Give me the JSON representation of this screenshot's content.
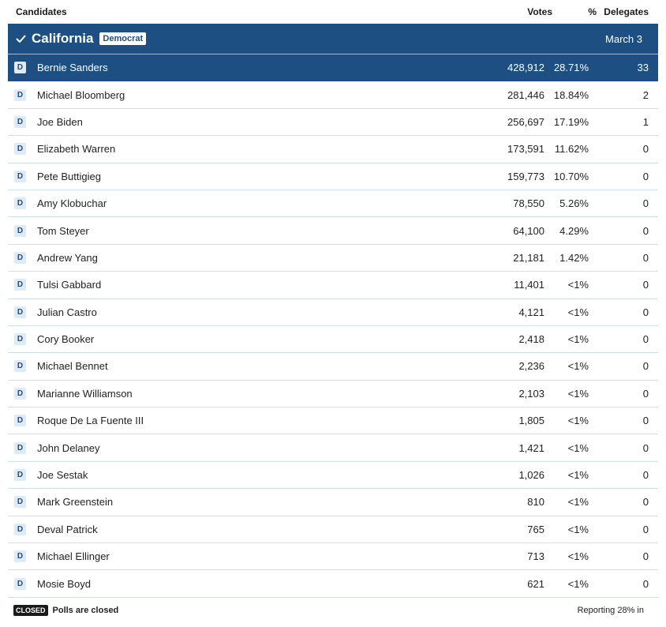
{
  "header": {
    "candidates_label": "Candidates",
    "votes_label": "Votes",
    "pct_label": "%",
    "delegates_label": "Delegates"
  },
  "state": {
    "name": "California",
    "party": "Democrat",
    "date": "March 3",
    "colors": {
      "bar": "#1d4f82",
      "badge_bg": "#dfeaf7"
    }
  },
  "candidates": [
    {
      "party": "D",
      "name": "Bernie Sanders",
      "votes": "428,912",
      "pct": "28.71%",
      "delegates": "33",
      "winner": true
    },
    {
      "party": "D",
      "name": "Michael Bloomberg",
      "votes": "281,446",
      "pct": "18.84%",
      "delegates": "2"
    },
    {
      "party": "D",
      "name": "Joe Biden",
      "votes": "256,697",
      "pct": "17.19%",
      "delegates": "1"
    },
    {
      "party": "D",
      "name": "Elizabeth Warren",
      "votes": "173,591",
      "pct": "11.62%",
      "delegates": "0"
    },
    {
      "party": "D",
      "name": "Pete Buttigieg",
      "votes": "159,773",
      "pct": "10.70%",
      "delegates": "0"
    },
    {
      "party": "D",
      "name": "Amy Klobuchar",
      "votes": "78,550",
      "pct": "5.26%",
      "delegates": "0"
    },
    {
      "party": "D",
      "name": "Tom Steyer",
      "votes": "64,100",
      "pct": "4.29%",
      "delegates": "0"
    },
    {
      "party": "D",
      "name": "Andrew Yang",
      "votes": "21,181",
      "pct": "1.42%",
      "delegates": "0"
    },
    {
      "party": "D",
      "name": "Tulsi Gabbard",
      "votes": "11,401",
      "pct": "<1%",
      "delegates": "0"
    },
    {
      "party": "D",
      "name": "Julian Castro",
      "votes": "4,121",
      "pct": "<1%",
      "delegates": "0"
    },
    {
      "party": "D",
      "name": "Cory Booker",
      "votes": "2,418",
      "pct": "<1%",
      "delegates": "0"
    },
    {
      "party": "D",
      "name": "Michael Bennet",
      "votes": "2,236",
      "pct": "<1%",
      "delegates": "0"
    },
    {
      "party": "D",
      "name": "Marianne Williamson",
      "votes": "2,103",
      "pct": "<1%",
      "delegates": "0"
    },
    {
      "party": "D",
      "name": "Roque De La Fuente III",
      "votes": "1,805",
      "pct": "<1%",
      "delegates": "0"
    },
    {
      "party": "D",
      "name": "John Delaney",
      "votes": "1,421",
      "pct": "<1%",
      "delegates": "0"
    },
    {
      "party": "D",
      "name": "Joe Sestak",
      "votes": "1,026",
      "pct": "<1%",
      "delegates": "0"
    },
    {
      "party": "D",
      "name": "Mark Greenstein",
      "votes": "810",
      "pct": "<1%",
      "delegates": "0"
    },
    {
      "party": "D",
      "name": "Deval Patrick",
      "votes": "765",
      "pct": "<1%",
      "delegates": "0"
    },
    {
      "party": "D",
      "name": "Michael Ellinger",
      "votes": "713",
      "pct": "<1%",
      "delegates": "0"
    },
    {
      "party": "D",
      "name": "Mosie Boyd",
      "votes": "621",
      "pct": "<1%",
      "delegates": "0"
    }
  ],
  "footer": {
    "closed_badge": "CLOSED",
    "closed_text": "Polls are closed",
    "reporting": "Reporting 28% in"
  }
}
